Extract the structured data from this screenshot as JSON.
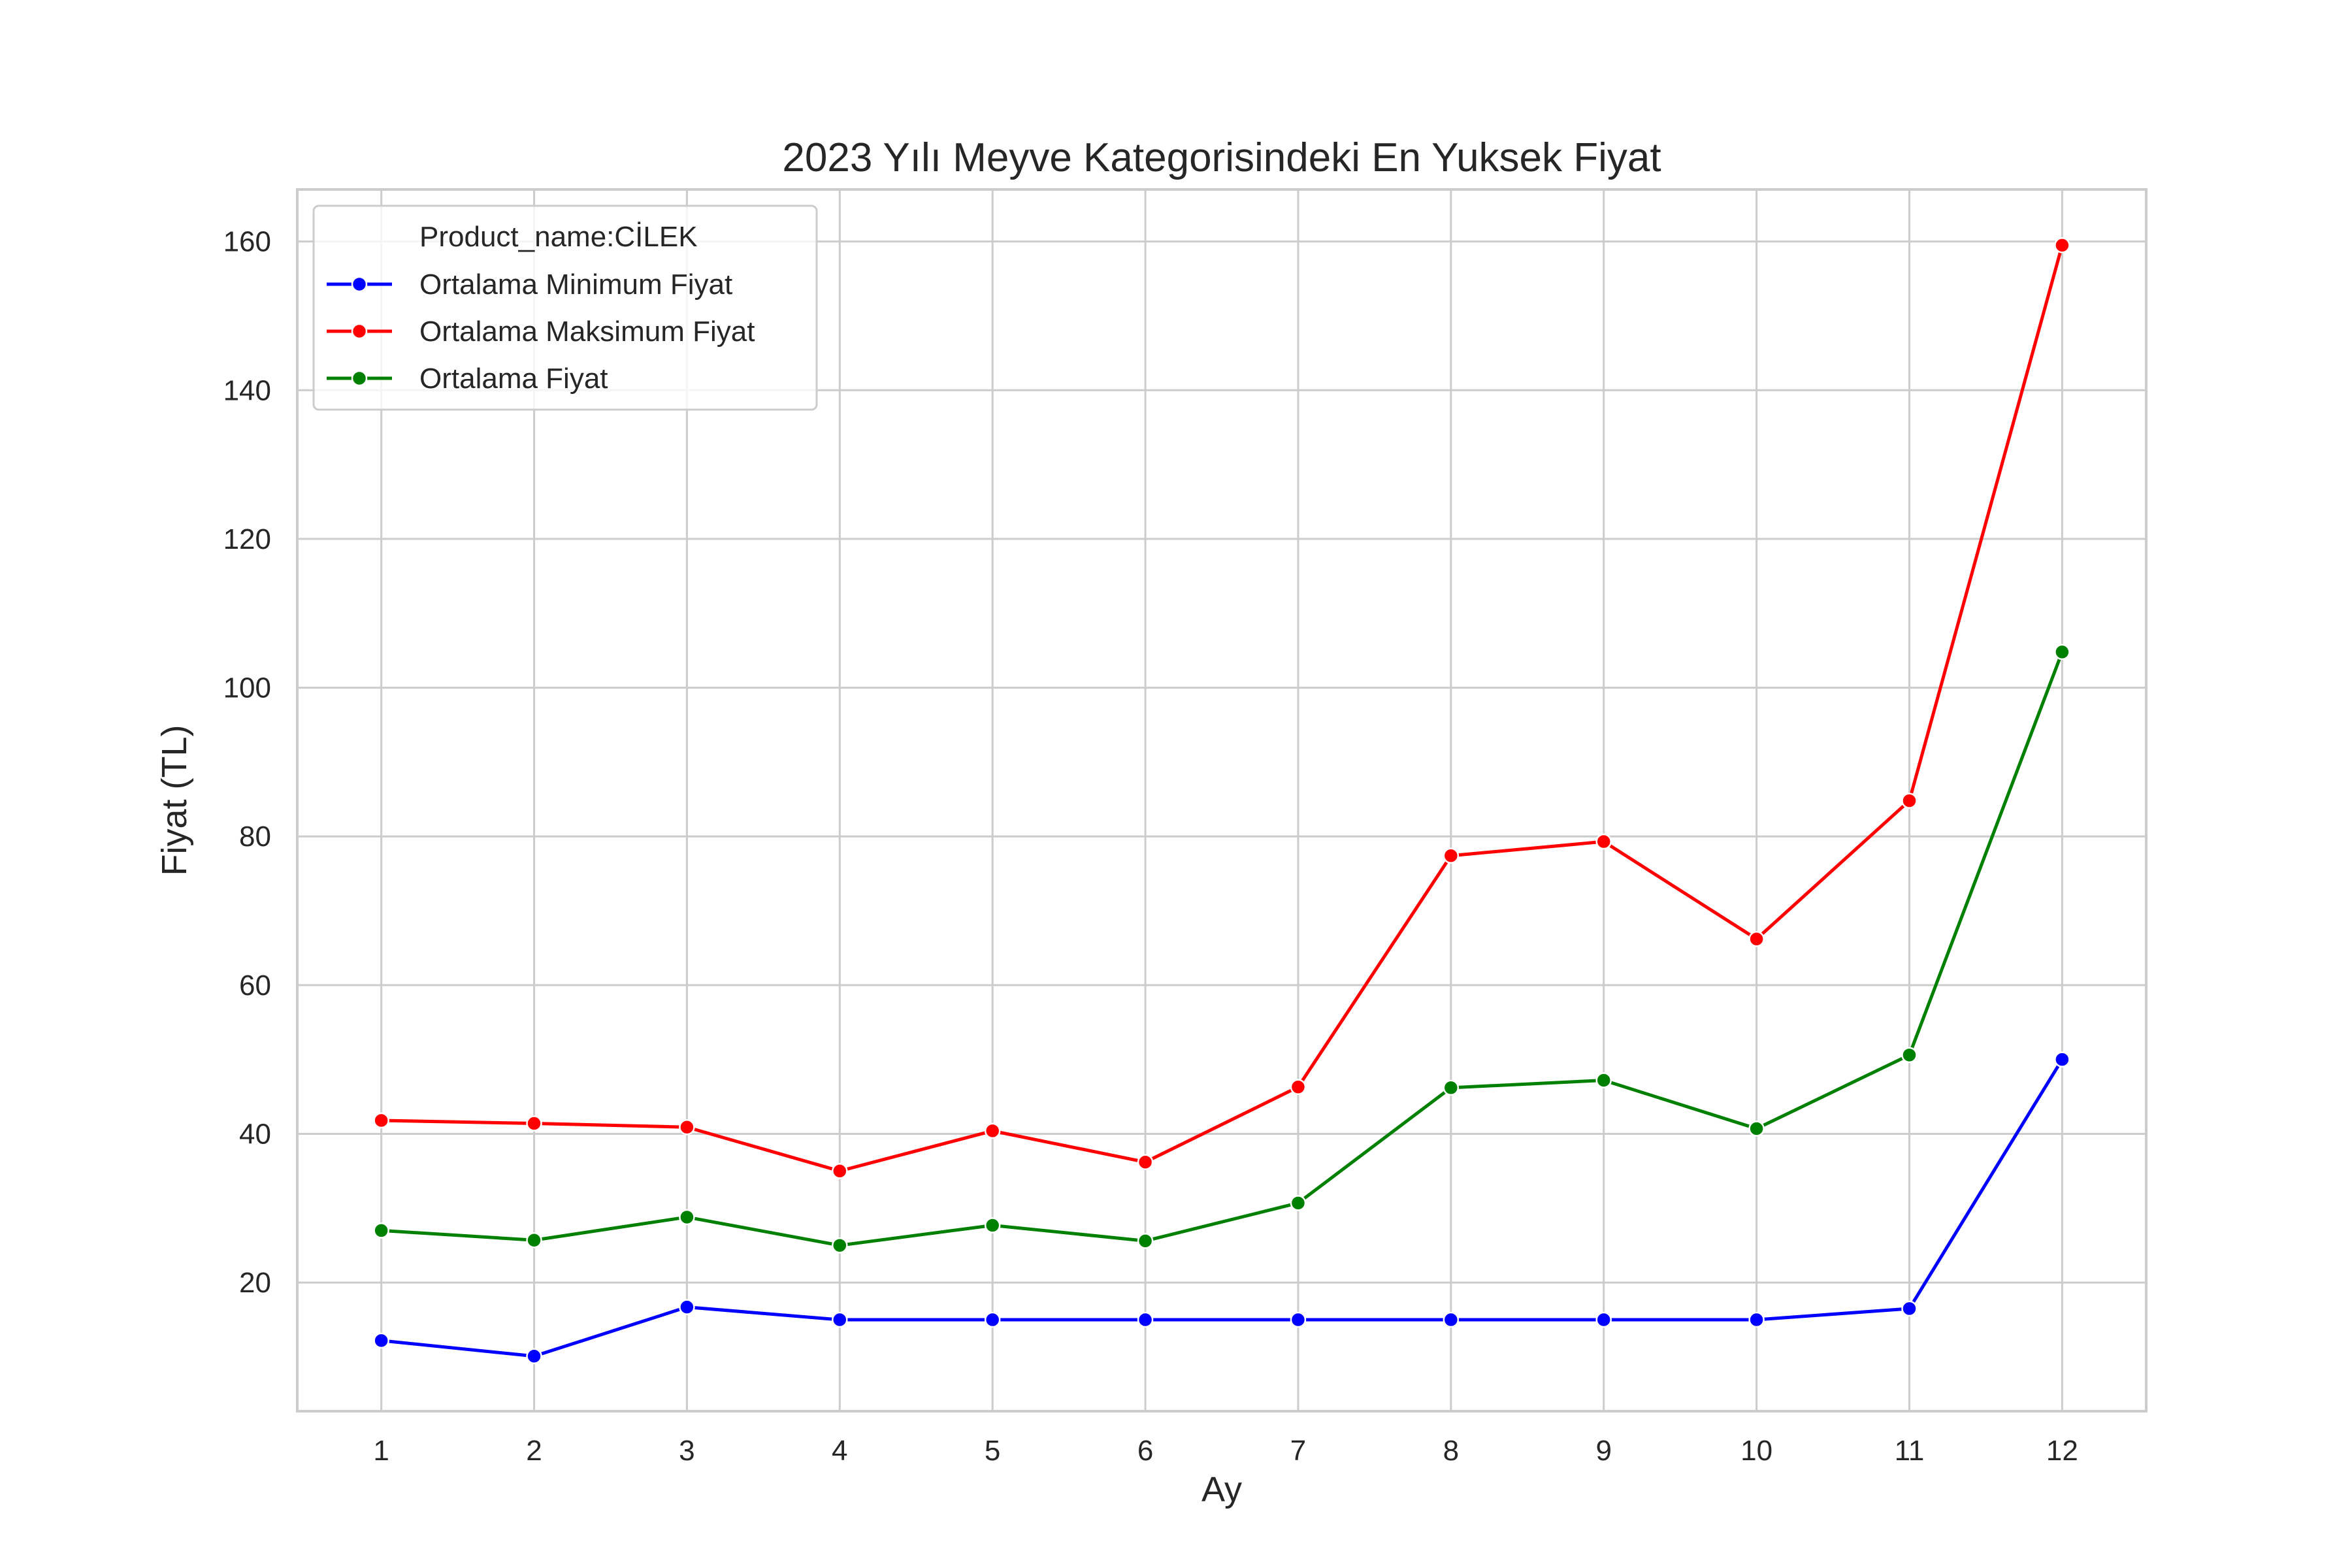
{
  "chart_data": {
    "type": "line",
    "title": "2023 Yılı Meyve Kategorisindeki En Yuksek Fiyat",
    "xlabel": "Ay",
    "ylabel": "Fiyat (TL)",
    "x": [
      1,
      2,
      3,
      4,
      5,
      6,
      7,
      8,
      9,
      10,
      11,
      12
    ],
    "xlim": [
      0.45,
      12.55
    ],
    "ylim": [
      2.7,
      167
    ],
    "yticks": [
      20,
      40,
      60,
      80,
      100,
      120,
      140,
      160
    ],
    "grid": true,
    "legend": {
      "position": "top-left",
      "title": "Product_name:CİLEK"
    },
    "series": [
      {
        "name": "Ortalama Minimum Fiyat",
        "color": "#0000ff",
        "values": [
          12.2,
          10.1,
          16.7,
          15.0,
          15.0,
          15.0,
          15.0,
          15.0,
          15.0,
          15.0,
          16.5,
          50.0
        ]
      },
      {
        "name": "Ortalama Maksimum Fiyat",
        "color": "#ff0000",
        "values": [
          41.8,
          41.4,
          40.9,
          35.0,
          40.4,
          36.2,
          46.3,
          77.4,
          79.3,
          66.2,
          84.8,
          159.5
        ]
      },
      {
        "name": "Ortalama Fiyat",
        "color": "#008000",
        "values": [
          27.0,
          25.7,
          28.8,
          25.0,
          27.7,
          25.6,
          30.7,
          46.2,
          47.2,
          40.7,
          50.6,
          104.8
        ]
      }
    ]
  }
}
